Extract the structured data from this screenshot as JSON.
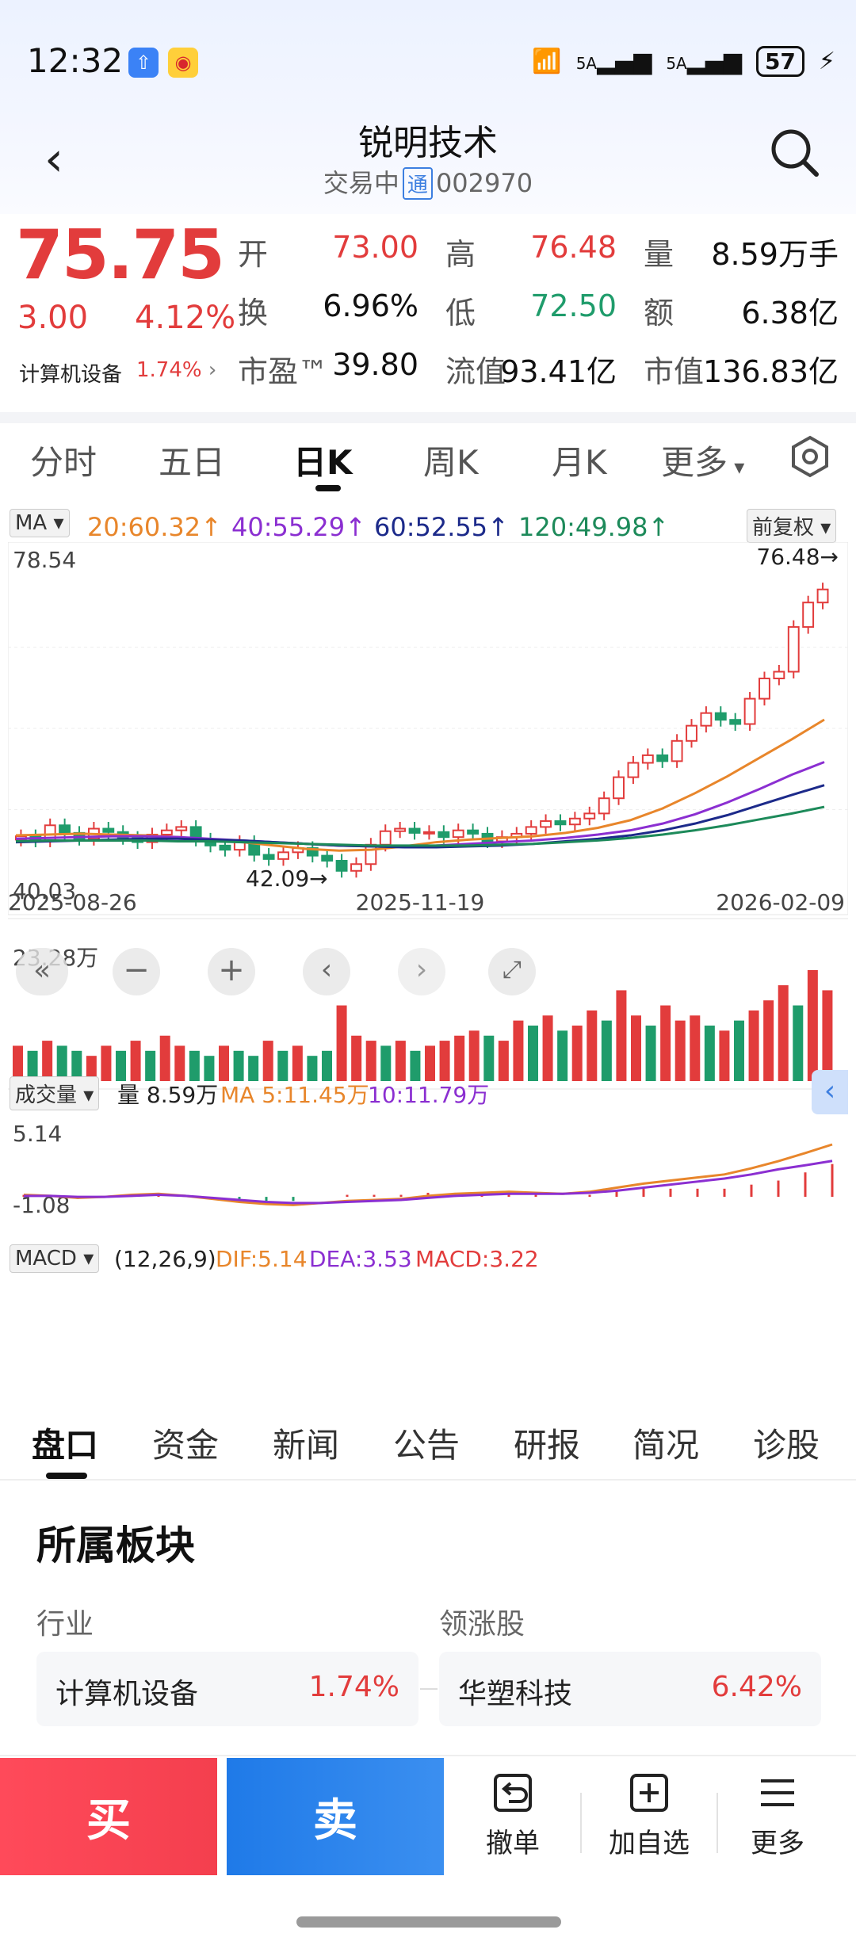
{
  "status_bar": {
    "time": "12:32",
    "signal1": "5A",
    "signal2": "5A",
    "battery": "57"
  },
  "header": {
    "title": "锐明技术",
    "status": "交易中",
    "exchange_badge": "通",
    "code": "002970"
  },
  "quote": {
    "price": "75.75",
    "change": "3.00",
    "change_pct": "4.12%",
    "sector_name": "计算机设备",
    "sector_pct": "1.74%",
    "fields": [
      {
        "label": "开",
        "value": "73.00",
        "color": "red"
      },
      {
        "label": "高",
        "value": "76.48",
        "color": "red"
      },
      {
        "label": "量",
        "value": "8.59万手",
        "color": "black"
      },
      {
        "label": "换",
        "value": "6.96%",
        "color": "black"
      },
      {
        "label": "低",
        "value": "72.50",
        "color": "green"
      },
      {
        "label": "额",
        "value": "6.38亿",
        "color": "black"
      },
      {
        "label": "市盈™",
        "value": "39.80",
        "color": "black"
      },
      {
        "label": "流值",
        "value": "93.41亿",
        "color": "black"
      },
      {
        "label": "市值",
        "value": "136.83亿",
        "color": "black"
      }
    ]
  },
  "period_tabs": [
    "分时",
    "五日",
    "日K",
    "周K",
    "月K",
    "更多"
  ],
  "ma_row": {
    "selector": "MA",
    "ma20": "20:60.32",
    "ma40": "40:55.29",
    "ma60": "60:52.55",
    "ma120": "120:49.98",
    "adjust": "前复权"
  },
  "colors": {
    "up": "#e23c3c",
    "down": "#1f9c6b",
    "ma20": "#e8862b",
    "ma40": "#8b2fd1",
    "ma60": "#1c2a8a",
    "ma120": "#1d8a5a"
  },
  "chart_data": {
    "type": "line",
    "kline": {
      "y_max_label": "78.54",
      "y_min_label": "40.03",
      "high_marker": "76.48→",
      "low_marker": "42.09→",
      "x_labels": [
        "2025-08-26",
        "2025-11-19",
        "2026-02-09"
      ],
      "ylim": [
        40.03,
        78.54
      ],
      "close_path": [
        46.5,
        46.0,
        47.8,
        46.9,
        46.2,
        47.4,
        47.0,
        46.3,
        45.8,
        46.7,
        47.2,
        47.6,
        46.1,
        45.4,
        44.9,
        45.8,
        44.3,
        43.8,
        44.6,
        45.1,
        44.2,
        43.6,
        42.4,
        43.2,
        45.5,
        47.1,
        47.4,
        46.9,
        47.0,
        46.4,
        47.2,
        46.8,
        45.9,
        46.4,
        46.8,
        47.6,
        48.3,
        47.9,
        48.6,
        49.2,
        51.0,
        53.5,
        55.2,
        56.1,
        55.4,
        57.8,
        59.6,
        61.1,
        60.3,
        59.8,
        62.8,
        65.2,
        66.0,
        71.3,
        74.2,
        75.75
      ],
      "series": [
        {
          "name": "MA20",
          "values": [
            46.6,
            46.7,
            46.8,
            46.7,
            46.6,
            46.4,
            46.1,
            45.8,
            45.4,
            45.0,
            44.8,
            44.9,
            45.3,
            45.8,
            46.1,
            46.3,
            46.5,
            46.9,
            47.5,
            48.4,
            49.8,
            51.6,
            53.6,
            55.8,
            58.0,
            60.32
          ]
        },
        {
          "name": "MA40",
          "values": [
            46.2,
            46.3,
            46.4,
            46.5,
            46.5,
            46.4,
            46.2,
            46.0,
            45.8,
            45.6,
            45.4,
            45.3,
            45.3,
            45.4,
            45.6,
            45.8,
            46.0,
            46.3,
            46.7,
            47.2,
            48.0,
            49.1,
            50.5,
            52.1,
            53.8,
            55.29
          ]
        },
        {
          "name": "MA60",
          "values": [
            45.8,
            45.9,
            46.0,
            46.1,
            46.2,
            46.2,
            46.1,
            46.0,
            45.8,
            45.6,
            45.4,
            45.3,
            45.2,
            45.2,
            45.3,
            45.4,
            45.6,
            45.9,
            46.2,
            46.6,
            47.2,
            48.0,
            49.0,
            50.2,
            51.4,
            52.55
          ]
        },
        {
          "name": "MA120",
          "values": [
            45.9,
            46.0,
            46.0,
            46.0,
            46.0,
            45.9,
            45.9,
            45.8,
            45.7,
            45.6,
            45.5,
            45.4,
            45.4,
            45.4,
            45.4,
            45.5,
            45.6,
            45.8,
            46.0,
            46.3,
            46.7,
            47.2,
            47.8,
            48.5,
            49.2,
            49.98
          ]
        }
      ]
    },
    "volume": {
      "selector": "成交量",
      "vol": "量 8.59万",
      "ma5": "MA 5:11.45万",
      "ma10": "10:11.79万",
      "y_max_label": "23.28万",
      "values": [
        7,
        6,
        8,
        7,
        6,
        5,
        7,
        6,
        8,
        6,
        9,
        7,
        6,
        5,
        7,
        6,
        5,
        8,
        6,
        7,
        5,
        6,
        15,
        9,
        8,
        7,
        8,
        6,
        7,
        8,
        9,
        10,
        9,
        8,
        12,
        11,
        13,
        10,
        11,
        14,
        12,
        18,
        13,
        11,
        15,
        12,
        13,
        11,
        10,
        12,
        14,
        16,
        19,
        15,
        22,
        18
      ],
      "up": [
        1,
        0,
        1,
        0,
        0,
        1,
        1,
        0,
        1,
        0,
        1,
        1,
        0,
        0,
        1,
        0,
        0,
        1,
        0,
        1,
        0,
        0,
        1,
        1,
        1,
        0,
        1,
        0,
        1,
        1,
        1,
        1,
        0,
        1,
        1,
        0,
        1,
        0,
        1,
        1,
        0,
        1,
        1,
        0,
        1,
        1,
        1,
        0,
        1,
        0,
        1,
        1,
        1,
        0,
        1,
        1
      ]
    },
    "macd": {
      "selector": "MACD",
      "params": "(12,26,9)",
      "dif": "DIF:5.14",
      "dea": "DEA:3.53",
      "macd": "MACD:3.22",
      "y_max_label": "5.14",
      "y_min_label": "-1.08",
      "ylim": [
        -1.08,
        5.14
      ],
      "dif_values": [
        0.2,
        0.1,
        -0.1,
        0.0,
        0.2,
        0.3,
        0.1,
        -0.2,
        -0.5,
        -0.7,
        -0.8,
        -0.6,
        -0.4,
        -0.3,
        -0.2,
        0.1,
        0.3,
        0.4,
        0.5,
        0.4,
        0.3,
        0.5,
        0.9,
        1.3,
        1.6,
        1.9,
        2.2,
        2.8,
        3.5,
        4.3,
        5.14
      ],
      "dea_values": [
        0.1,
        0.1,
        0.0,
        0.0,
        0.1,
        0.2,
        0.1,
        -0.1,
        -0.3,
        -0.5,
        -0.6,
        -0.6,
        -0.5,
        -0.4,
        -0.3,
        -0.1,
        0.1,
        0.2,
        0.3,
        0.3,
        0.3,
        0.4,
        0.6,
        0.9,
        1.2,
        1.5,
        1.8,
        2.2,
        2.7,
        3.1,
        3.53
      ]
    }
  },
  "bottom_tabs": [
    "盘口",
    "资金",
    "新闻",
    "公告",
    "研报",
    "简况",
    "诊股"
  ],
  "sector_section": {
    "title": "所属板块",
    "industry_label": "行业",
    "leader_label": "领涨股",
    "industry_name": "计算机设备",
    "industry_pct": "1.74%",
    "leader_name": "华塑科技",
    "leader_pct": "6.42%"
  },
  "actions": {
    "buy": "买",
    "sell": "卖",
    "cancel": "撤单",
    "add_watch": "加自选",
    "more": "更多"
  }
}
